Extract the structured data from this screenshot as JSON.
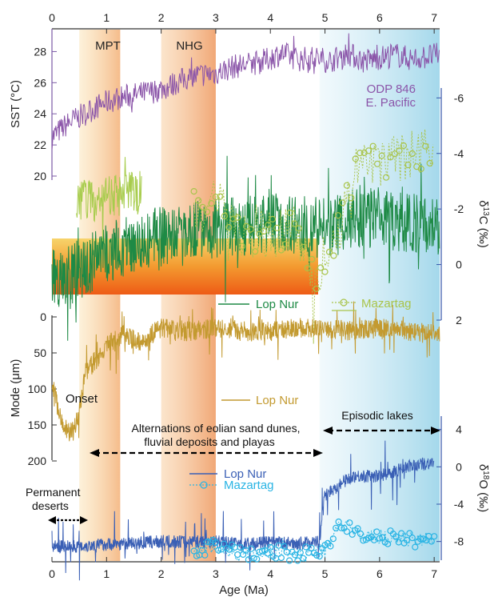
{
  "chart_data": {
    "type": "line",
    "title": "",
    "xlabel": "Age (Ma)",
    "xlim": [
      0,
      7.1
    ],
    "x_ticks": [
      "0",
      "1",
      "2",
      "3",
      "4",
      "5",
      "6",
      "7"
    ],
    "shaded_periods": [
      {
        "label": "MPT",
        "range": [
          0.5,
          1.25
        ],
        "color": "#f3c98e"
      },
      {
        "label": "NHG",
        "range": [
          2.0,
          3.0
        ],
        "color": "#f2a878"
      },
      {
        "label": "",
        "range": [
          4.9,
          7.1
        ],
        "color": "#bfe3ef"
      }
    ],
    "panels": [
      {
        "name": "SST",
        "ylabel": "SST (°C)",
        "ylim": [
          20,
          29
        ],
        "y_ticks": [
          "20",
          "22",
          "24",
          "26",
          "28"
        ],
        "series": [
          {
            "name": "ODP 846 E. Pacific",
            "color": "#8b55a9",
            "x": [
              0,
              0.3,
              0.6,
              0.9,
              1.2,
              1.5,
              1.8,
              2.1,
              2.4,
              2.7,
              3.0,
              3.3,
              3.6,
              3.9,
              4.2,
              4.5,
              4.8,
              5.1,
              5.4,
              5.7,
              6.0,
              6.3,
              6.6,
              6.9,
              7.1
            ],
            "y": [
              22.5,
              23.4,
              24.0,
              24.6,
              25.0,
              25.2,
              25.4,
              25.7,
              26.2,
              26.5,
              26.6,
              27.0,
              27.2,
              27.4,
              27.9,
              27.5,
              27.6,
              27.4,
              27.9,
              27.4,
              27.6,
              27.8,
              27.5,
              27.7,
              27.8
            ]
          }
        ]
      },
      {
        "name": "d13C",
        "ylabel": "δ13C (‰)",
        "ylim": [
          -6.5,
          2
        ],
        "y_ticks": [
          "-6",
          "-4",
          "-2",
          "0",
          "2"
        ],
        "series": [
          {
            "name": "Lop Nur",
            "color": "#1e8a45",
            "x": [
              0,
              0.5,
              1.0,
              1.5,
              2.0,
              2.5,
              3.0,
              3.5,
              4.0,
              4.5,
              5.0,
              5.5,
              6.0,
              6.5,
              7.1
            ],
            "y": [
              0.6,
              0.2,
              -0.4,
              -0.8,
              -1.0,
              -1.2,
              -1.3,
              -1.4,
              -1.5,
              -1.4,
              -1.3,
              -1.6,
              -1.7,
              -1.5,
              -1.4
            ]
          },
          {
            "name": "Mazartag",
            "color": "#8db53c",
            "x": [
              2.6,
              3.0,
              3.5,
              4.0,
              4.5,
              4.8,
              5.2,
              5.6,
              6.0,
              6.4,
              6.8,
              7.0
            ],
            "y": [
              -2.0,
              -2.3,
              -1.0,
              -1.1,
              -1.3,
              0.5,
              -1.0,
              -3.6,
              -3.7,
              -3.9,
              -4.0,
              -4.5
            ]
          }
        ]
      },
      {
        "name": "Mode",
        "ylabel": "Mode (μm)",
        "ylim": [
          0,
          200
        ],
        "y_ticks": [
          "0",
          "50",
          "100",
          "150",
          "200"
        ],
        "series": [
          {
            "name": "Lop Nur",
            "color": "#c39a30",
            "x": [
              0,
              0.2,
              0.4,
              0.5,
              0.6,
              0.8,
              1.0,
              1.3,
              1.6,
              2.0,
              2.5,
              3.0,
              3.5,
              4.0,
              4.5,
              5.0,
              5.5,
              6.0,
              6.5,
              7.1
            ],
            "y": [
              90,
              155,
              160,
              130,
              80,
              60,
              40,
              25,
              35,
              15,
              20,
              15,
              20,
              20,
              15,
              15,
              20,
              15,
              20,
              25
            ]
          }
        ]
      },
      {
        "name": "d18O",
        "ylabel": "δ18O (‰)",
        "ylim": [
          -10,
          5
        ],
        "y_ticks": [
          "4",
          "0",
          "-4",
          "-8"
        ],
        "series": [
          {
            "name": "Lop Nur",
            "color": "#3a5fb5",
            "x": [
              0,
              0.5,
              1.0,
              1.5,
              2.0,
              2.5,
              3.0,
              3.5,
              4.0,
              4.5,
              4.9,
              5.0,
              5.5,
              6.0,
              6.5,
              7.0
            ],
            "y": [
              -8.5,
              -8.5,
              -8.3,
              -8.2,
              -8.0,
              -8.0,
              -8.0,
              -8.3,
              -8.1,
              -8.2,
              -8.0,
              -3.0,
              -1.0,
              -1.0,
              0.0,
              0.5
            ]
          },
          {
            "name": "Mazartag",
            "color": "#29b4e4",
            "x": [
              2.6,
              3.0,
              3.5,
              4.0,
              4.5,
              5.0,
              5.3,
              5.6,
              6.0,
              6.5,
              7.0
            ],
            "y": [
              -9.0,
              -8.5,
              -9.5,
              -9.0,
              -9.5,
              -9.0,
              -6.0,
              -7.2,
              -7.5,
              -7.8,
              -7.8
            ]
          }
        ]
      }
    ],
    "annotations": [
      {
        "text": "Onset"
      },
      {
        "text": "Alternations of eolian sand dunes,"
      },
      {
        "text": "fluvial deposits and playas"
      },
      {
        "text": "Episodic lakes"
      },
      {
        "text": "Permanent"
      },
      {
        "text": "deserts"
      }
    ],
    "legend": {
      "odp_title": "ODP 846",
      "odp_subtitle": "E. Pacific",
      "lop_nur": "Lop Nur",
      "mazartag": "Mazartag"
    }
  }
}
